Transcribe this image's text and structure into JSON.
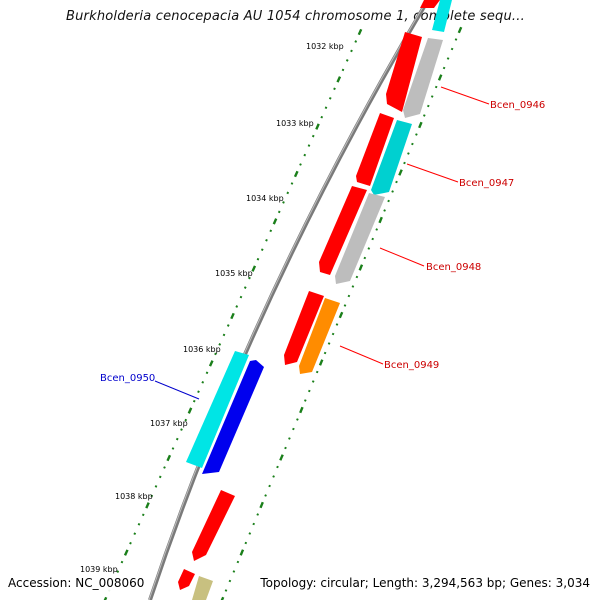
{
  "title": "Burkholderia cenocepacia AU 1054 chromosome 1, complete sequ...",
  "footer": {
    "accession": "Accession: NC_008060",
    "summary": "Topology: circular; Length: 3,294,563 bp; Genes: 3,034"
  },
  "colors": {
    "backbone": "#7a7a7a",
    "tick": "#1a7f1a",
    "label_reverse": "#cc0000",
    "label_forward": "#0000cc",
    "leader_line": "#ff0000",
    "leader_line_forward": "#0000cc"
  },
  "ruler": [
    {
      "label": "1032 kbp"
    },
    {
      "label": "1033 kbp"
    },
    {
      "label": "1034 kbp"
    },
    {
      "label": "1035 kbp"
    },
    {
      "label": "1036 kbp"
    },
    {
      "label": "1037 kbp"
    },
    {
      "label": "1038 kbp"
    },
    {
      "label": "1039 kbp"
    }
  ],
  "gene_labels": [
    {
      "name": "Bcen_0946",
      "strand": "reverse"
    },
    {
      "name": "Bcen_0947",
      "strand": "reverse"
    },
    {
      "name": "Bcen_0948",
      "strand": "reverse"
    },
    {
      "name": "Bcen_0949",
      "strand": "reverse"
    },
    {
      "name": "Bcen_0950",
      "strand": "forward"
    }
  ],
  "features": [
    {
      "track": "reverse-outer",
      "color": "#ff0000",
      "shape": "arrow"
    },
    {
      "track": "reverse-inner",
      "color": "#00e5e5",
      "shape": "box"
    },
    {
      "track": "reverse-outer",
      "color": "#ff0000",
      "shape": "arrow"
    },
    {
      "track": "reverse-inner",
      "color": "#bdbdbd",
      "shape": "arrow"
    },
    {
      "track": "reverse-outer",
      "color": "#ff0000",
      "shape": "arrow"
    },
    {
      "track": "reverse-inner",
      "color": "#00d0d0",
      "shape": "arrow"
    },
    {
      "track": "reverse-outer",
      "color": "#ff0000",
      "shape": "arrow"
    },
    {
      "track": "reverse-inner",
      "color": "#bdbdbd",
      "shape": "arrow"
    },
    {
      "track": "reverse-outer",
      "color": "#ff0000",
      "shape": "arrow"
    },
    {
      "track": "reverse-inner",
      "color": "#ff8c00",
      "shape": "arrow"
    },
    {
      "track": "forward-outer",
      "color": "#00e5e5",
      "shape": "arrow"
    },
    {
      "track": "forward-inner",
      "color": "#0000ee",
      "shape": "arrow"
    },
    {
      "track": "forward-outer",
      "color": "#ff0000",
      "shape": "arrow"
    },
    {
      "track": "forward-outer",
      "color": "#ff0000",
      "shape": "arrow"
    },
    {
      "track": "forward-inner",
      "color": "#c8c080",
      "shape": "box"
    }
  ]
}
